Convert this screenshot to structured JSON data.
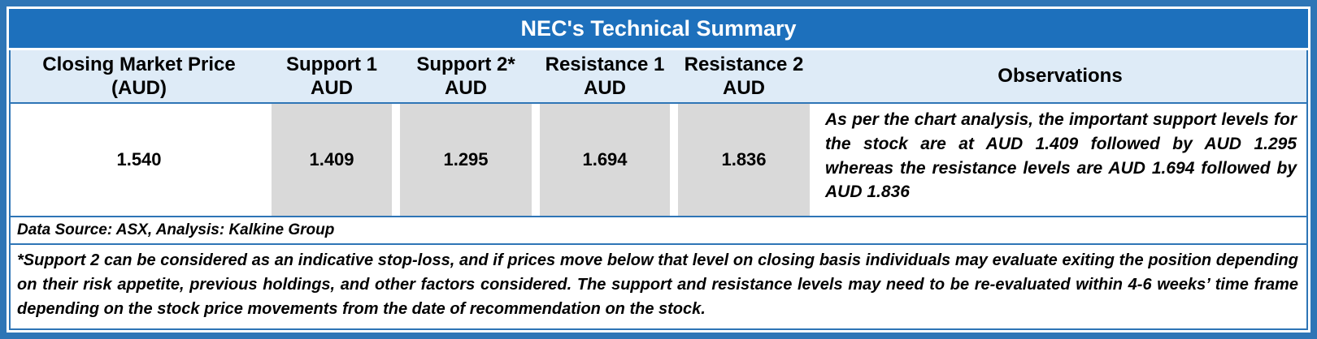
{
  "table": {
    "title": "NEC's Technical Summary",
    "columns": [
      {
        "label": "Closing Market Price (AUD)",
        "sub": ""
      },
      {
        "label": "Support 1",
        "sub": "AUD"
      },
      {
        "label": "Support 2*",
        "sub": "AUD"
      },
      {
        "label": "Resistance 1",
        "sub": "AUD"
      },
      {
        "label": "Resistance 2",
        "sub": "AUD"
      },
      {
        "label": "Observations",
        "sub": ""
      }
    ],
    "row": {
      "closing_price": "1.540",
      "support_1": "1.409",
      "support_2": "1.295",
      "resistance_1": "1.694",
      "resistance_2": "1.836",
      "observations": "As per the chart analysis, the important support levels for the stock are at AUD 1.409 followed by AUD 1.295 whereas the resistance levels are AUD 1.694 followed by AUD 1.836"
    },
    "data_source": "Data Source: ASX, Analysis: Kalkine Group",
    "footnote": "*Support 2 can be considered as an indicative stop-loss, and if prices move below that level on closing basis individuals may evaluate exiting the position depending on their risk appetite, previous holdings, and other factors considered. The support and resistance levels may need to be re-evaluated within 4-6 weeks’ time frame depending on the stock price movements from the date of recommendation on the stock."
  },
  "colors": {
    "border_blue": "#2E75B6",
    "title_bg": "#1D70BC",
    "header_bg": "#DEEBF7",
    "cell_gray": "#D9D9D9",
    "title_text": "#FFFFFF"
  }
}
